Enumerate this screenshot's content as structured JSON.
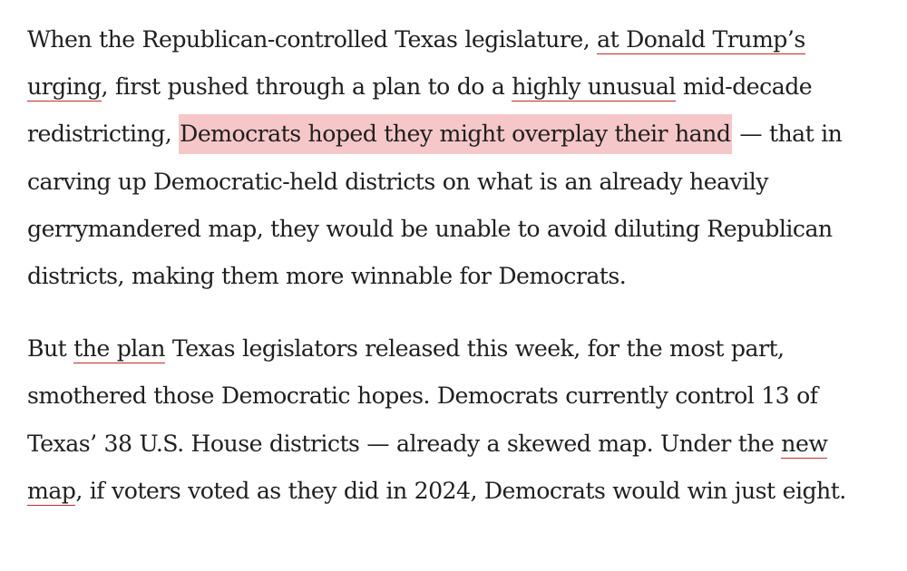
{
  "paragraphs": [
    {
      "segments": [
        {
          "type": "text",
          "text": "When the Republican-controlled Texas legislature, "
        },
        {
          "type": "link",
          "text": "at Donald Trump’s urging",
          "name": "link-trump-urging"
        },
        {
          "type": "text",
          "text": ", first pushed through a plan to do a "
        },
        {
          "type": "link",
          "text": "highly unusual",
          "name": "link-highly-unusual"
        },
        {
          "type": "text",
          "text": " mid-decade redistricting, "
        },
        {
          "type": "highlight",
          "text": "Democrats hoped they might overplay their hand",
          "name": "highlight-overplay"
        },
        {
          "type": "text",
          "text": " — that in carving up Democratic-held districts on what is an already heavily gerrymandered map, they would be unable to avoid diluting Republican districts, making them more winnable for Democrats."
        }
      ]
    },
    {
      "segments": [
        {
          "type": "text",
          "text": "But "
        },
        {
          "type": "link",
          "text": "the plan",
          "name": "link-the-plan"
        },
        {
          "type": "text",
          "text": " Texas legislators released this week, for the most part, smothered those Democratic hopes. Democrats currently control 13 of Texas’ 38 U.S. House districts — already a skewed map. Under the "
        },
        {
          "type": "link",
          "text": "new map",
          "name": "link-new-map"
        },
        {
          "type": "text",
          "text": ", if voters voted as they did in 2024, Democrats would win just eight."
        }
      ]
    }
  ],
  "colors": {
    "text": "#1f1f1f",
    "link_underline": "#c62a2a",
    "highlight": "#f5c7c9"
  }
}
